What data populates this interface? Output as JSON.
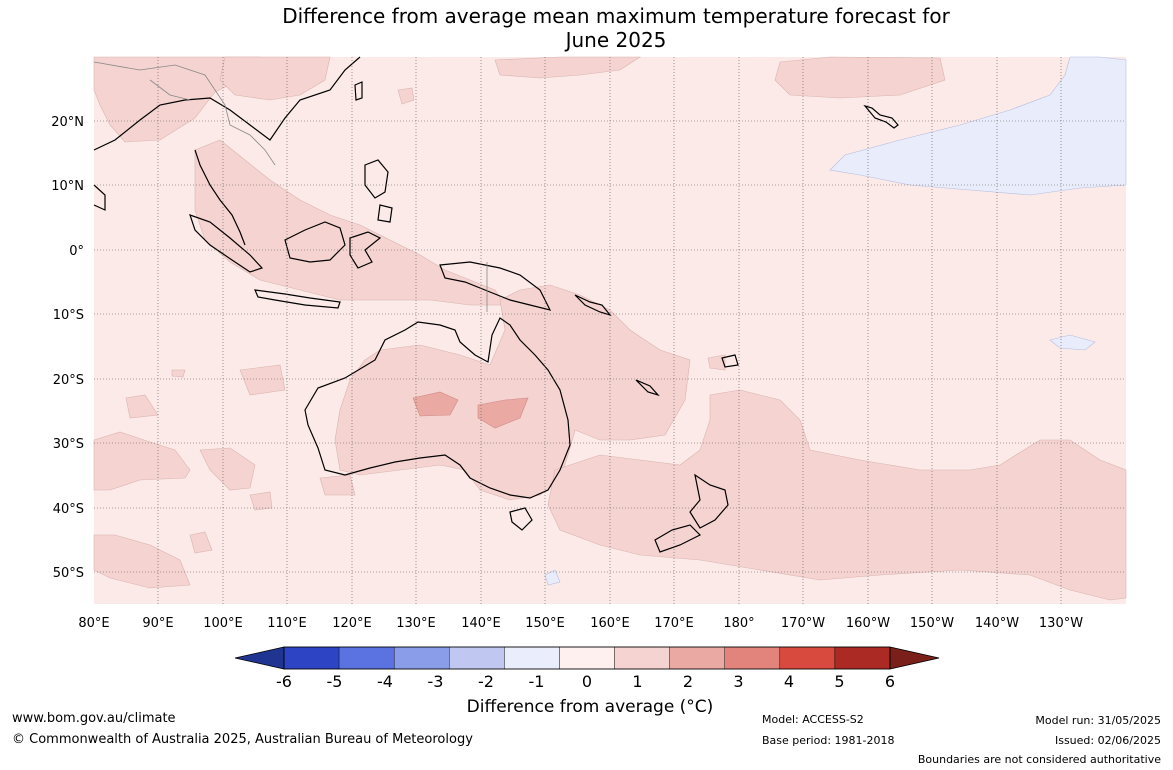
{
  "title": {
    "line1": "Difference from average mean maximum temperature forecast for",
    "line2": "June 2025"
  },
  "map": {
    "region": "Australia and Pacific",
    "lat_labels": [
      "20°N",
      "10°N",
      "0°",
      "10°S",
      "20°S",
      "30°S",
      "40°S",
      "50°S"
    ],
    "lon_labels": [
      "80°E",
      "90°E",
      "100°E",
      "110°E",
      "120°E",
      "130°E",
      "140°E",
      "150°E",
      "160°E",
      "170°E",
      "180°",
      "170°W",
      "160°W",
      "150°W",
      "140°W",
      "130°W"
    ],
    "colors": {
      "ocean_0_to_1": "#fbeae8",
      "anomaly_1_to_2": "#f5d3d0",
      "anomaly_2_to_3": "#eba9a4",
      "anomaly_minus1_to_0": "#e9ecfa",
      "coastline": "#000000",
      "borders": "#888888",
      "gridlines": "#666666"
    }
  },
  "colorbar": {
    "tick_labels": [
      "-6",
      "-5",
      "-4",
      "-3",
      "-2",
      "-1",
      "0",
      "1",
      "2",
      "3",
      "4",
      "5",
      "6"
    ],
    "colors": [
      "#1f3591",
      "#2d45c4",
      "#5a73e0",
      "#8a9de8",
      "#c0c8f2",
      "#eaedfb",
      "#fdf0ef",
      "#f5d3d0",
      "#eba9a4",
      "#e2847c",
      "#d84a3e",
      "#ab2a23",
      "#7a1f1a"
    ],
    "title": "Difference from average (°C)"
  },
  "footer": {
    "website": "www.bom.gov.au/climate",
    "copyright": "© Commonwealth of Australia 2025, Australian Bureau of Meteorology",
    "model": "Model: ACCESS-S2",
    "base_period": "Base period: 1981-2018",
    "model_run": "Model run: 31/05/2025",
    "issued": "Issued: 02/06/2025",
    "disclaimer": "Boundaries are not considered authoritative"
  }
}
